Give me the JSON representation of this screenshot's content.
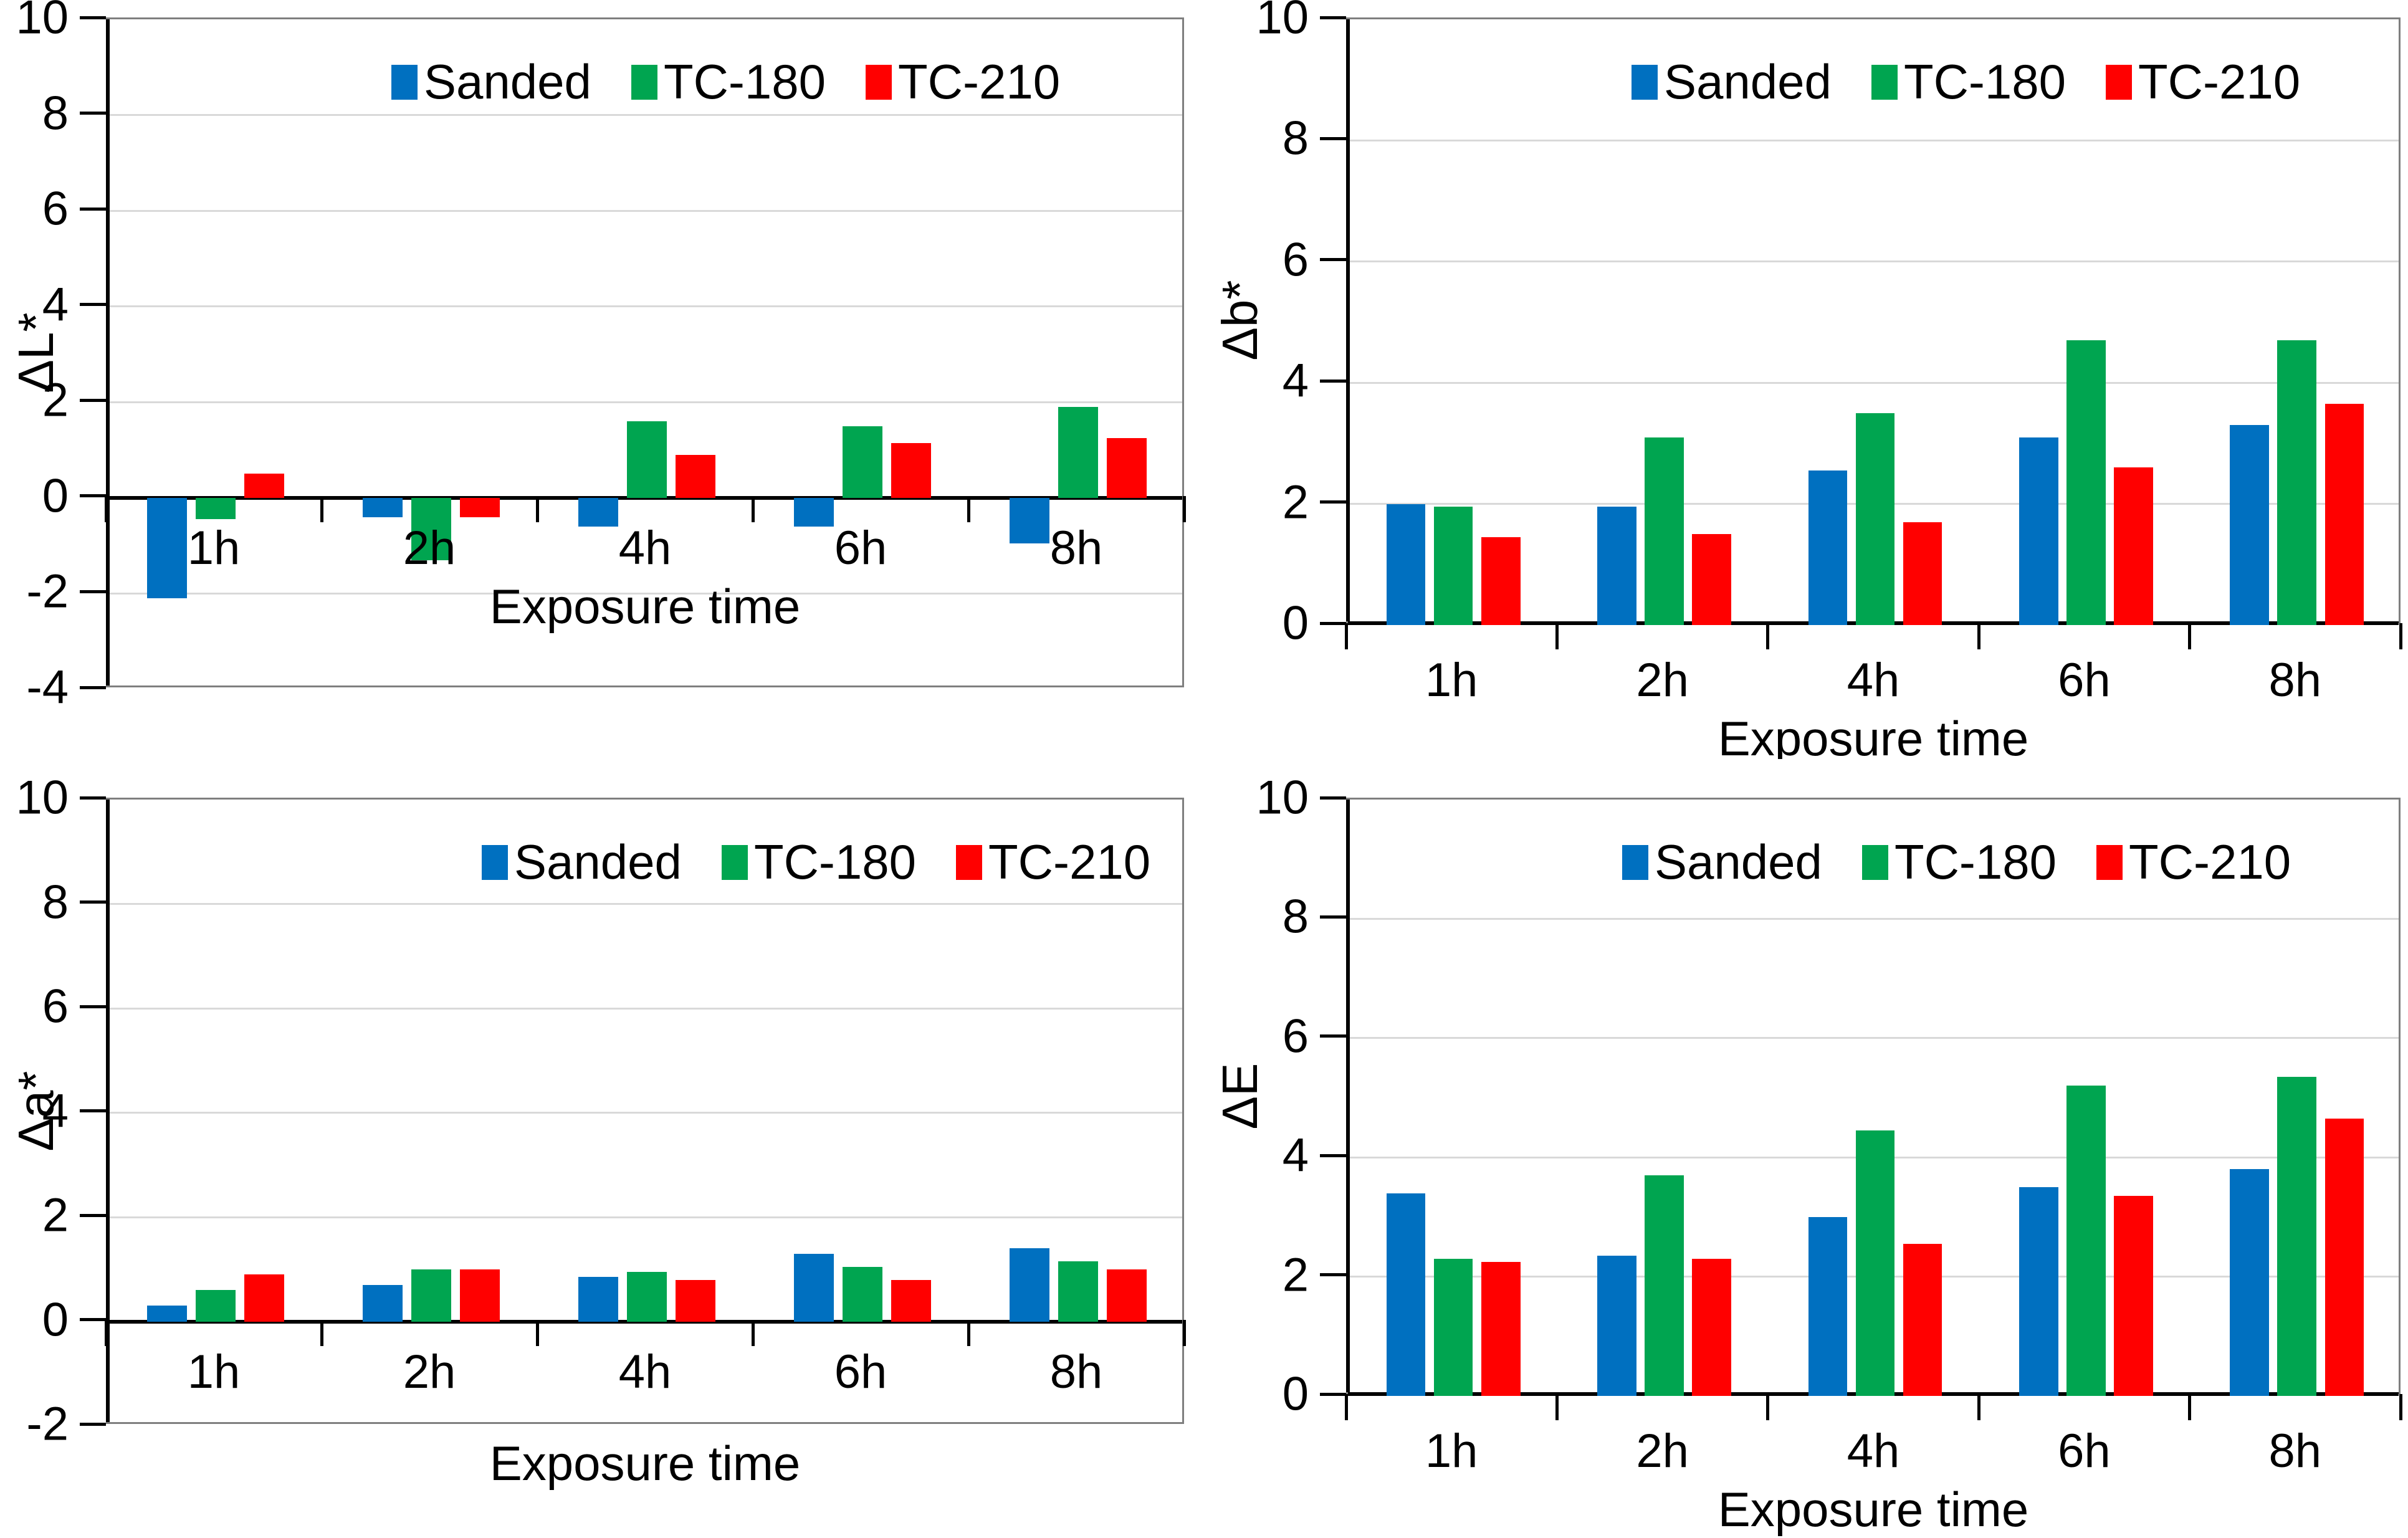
{
  "figure": {
    "background": "#FFFFFF"
  },
  "legend": {
    "items": [
      {
        "label": "Sanded",
        "color": "#0070C0"
      },
      {
        "label": "TC-180",
        "color": "#00A550"
      },
      {
        "label": "TC-210",
        "color": "#FF0000"
      }
    ]
  },
  "chart_data": [
    {
      "type": "bar",
      "title": "",
      "ylabel": "ΔL*",
      "xlabel": "Exposure time",
      "categories": [
        "1h",
        "2h",
        "4h",
        "6h",
        "8h"
      ],
      "ylim": [
        -4,
        10
      ],
      "ytick_step": 2,
      "grid": true,
      "legend_position": "top-center-inside",
      "series": [
        {
          "name": "Sanded",
          "color": "#0070C0",
          "values": [
            -2.1,
            -0.4,
            -0.6,
            -0.6,
            -0.95
          ]
        },
        {
          "name": "TC-180",
          "color": "#00A550",
          "values": [
            -0.45,
            -1.3,
            1.6,
            1.5,
            1.9
          ]
        },
        {
          "name": "TC-210",
          "color": "#FF0000",
          "values": [
            0.5,
            -0.4,
            0.9,
            1.15,
            1.25
          ]
        }
      ]
    },
    {
      "type": "bar",
      "title": "",
      "ylabel": "Δb*",
      "xlabel": "Exposure time",
      "categories": [
        "1h",
        "2h",
        "4h",
        "6h",
        "8h"
      ],
      "ylim": [
        0,
        10
      ],
      "ytick_step": 2,
      "grid": true,
      "legend_position": "top-center-inside",
      "series": [
        {
          "name": "Sanded",
          "color": "#0070C0",
          "values": [
            2.0,
            1.95,
            2.55,
            3.1,
            3.3
          ]
        },
        {
          "name": "TC-180",
          "color": "#00A550",
          "values": [
            1.95,
            3.1,
            3.5,
            4.7,
            4.7
          ]
        },
        {
          "name": "TC-210",
          "color": "#FF0000",
          "values": [
            1.45,
            1.5,
            1.7,
            2.6,
            3.65
          ]
        }
      ]
    },
    {
      "type": "bar",
      "title": "",
      "ylabel": "Δa*",
      "xlabel": "Exposure time",
      "categories": [
        "1h",
        "2h",
        "4h",
        "6h",
        "8h"
      ],
      "ylim": [
        -2,
        10
      ],
      "ytick_step": 2,
      "grid": true,
      "legend_position": "top-right-inside",
      "series": [
        {
          "name": "Sanded",
          "color": "#0070C0",
          "values": [
            0.3,
            0.7,
            0.85,
            1.3,
            1.4
          ]
        },
        {
          "name": "TC-180",
          "color": "#00A550",
          "values": [
            0.6,
            1.0,
            0.95,
            1.05,
            1.15
          ]
        },
        {
          "name": "TC-210",
          "color": "#FF0000",
          "values": [
            0.9,
            1.0,
            0.8,
            0.8,
            1.0
          ]
        }
      ]
    },
    {
      "type": "bar",
      "title": "",
      "ylabel": "ΔE",
      "xlabel": "Exposure time",
      "categories": [
        "1h",
        "2h",
        "4h",
        "6h",
        "8h"
      ],
      "ylim": [
        0,
        10
      ],
      "ytick_step": 2,
      "grid": true,
      "legend_position": "top-center-inside",
      "series": [
        {
          "name": "Sanded",
          "color": "#0070C0",
          "values": [
            3.4,
            2.35,
            3.0,
            3.5,
            3.8
          ]
        },
        {
          "name": "TC-180",
          "color": "#00A550",
          "values": [
            2.3,
            3.7,
            4.45,
            5.2,
            5.35
          ]
        },
        {
          "name": "TC-210",
          "color": "#FF0000",
          "values": [
            2.25,
            2.3,
            2.55,
            3.35,
            4.65
          ]
        }
      ]
    }
  ]
}
